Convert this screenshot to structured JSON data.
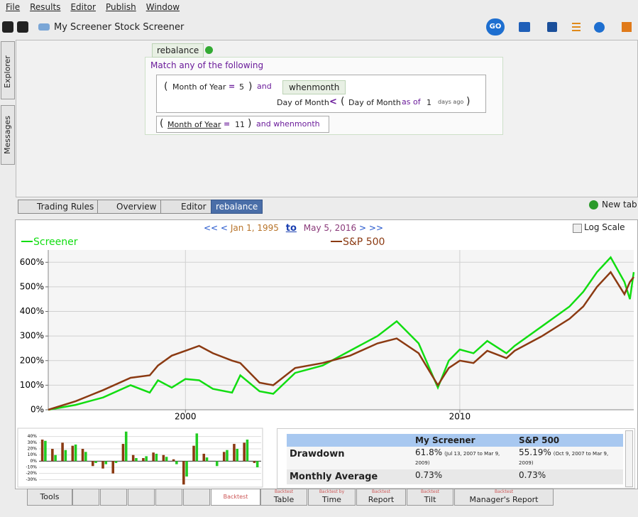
{
  "menu": [
    "File",
    "Results",
    "Editor",
    "Publish",
    "Window"
  ],
  "toolbar": {
    "title": "My Screener Stock Screener",
    "go": "GO"
  },
  "side_tabs": [
    "Explorer",
    "Messages"
  ],
  "rules": {
    "tab": "rebalance",
    "match": "Match any of the following",
    "row1": [
      "(",
      "Month of Year",
      "=",
      "5",
      ")",
      "and"
    ],
    "sub_tab": "whenmonth",
    "row1b": [
      "Day of Month",
      "<",
      "(",
      "Day of Month",
      "as of",
      "1",
      "days ago",
      ")"
    ],
    "row2": [
      "(",
      "Month of Year",
      "=",
      "11",
      ")",
      "and whenmonth"
    ]
  },
  "tabs": [
    "Trading Rules",
    "Overview",
    "Editor",
    "rebalance"
  ],
  "new_tab": "New tab",
  "range": {
    "back": "<< <",
    "start": "Jan 1, 1995",
    "to": "to",
    "end": "May 5, 2016",
    "forward": "> >>"
  },
  "log_scale": "Log Scale",
  "chart_data": [
    {
      "type": "line",
      "x": [
        1995,
        1996,
        1997,
        1998,
        1998.7,
        1999,
        1999.5,
        2000,
        2000.5,
        2001,
        2001.7,
        2002,
        2002.7,
        2003.2,
        2004,
        2005,
        2006,
        2007,
        2007.7,
        2008.5,
        2009.2,
        2009.6,
        2010,
        2010.5,
        2011,
        2011.7,
        2012,
        2013,
        2014,
        2014.5,
        2015,
        2015.5,
        2016,
        2016.2,
        2016.34
      ],
      "series": [
        {
          "name": "Screener",
          "color": "#11dd11",
          "values": [
            0,
            20,
            50,
            100,
            70,
            120,
            90,
            125,
            120,
            85,
            70,
            140,
            75,
            65,
            150,
            180,
            240,
            300,
            360,
            270,
            90,
            200,
            245,
            230,
            280,
            230,
            260,
            340,
            420,
            480,
            560,
            620,
            520,
            450,
            560
          ]
        },
        {
          "name": "S&P 500",
          "color": "#8b3a12",
          "values": [
            0,
            35,
            80,
            130,
            140,
            180,
            220,
            240,
            260,
            230,
            200,
            190,
            110,
            100,
            170,
            190,
            220,
            270,
            290,
            230,
            100,
            170,
            200,
            190,
            240,
            210,
            240,
            300,
            370,
            420,
            500,
            560,
            470,
            520,
            540
          ]
        }
      ],
      "xlim": [
        1995,
        2016.34
      ],
      "xticks": [
        2000,
        2010
      ],
      "ylim": [
        0,
        650
      ],
      "yticks": [
        {
          "value": 0,
          "label": "0%"
        },
        {
          "value": 100,
          "label": "100%"
        },
        {
          "value": 200,
          "label": "200%"
        },
        {
          "value": 300,
          "label": "300%"
        },
        {
          "value": 400,
          "label": "400%"
        },
        {
          "value": 500,
          "label": "500%"
        },
        {
          "value": 600,
          "label": "600%"
        }
      ],
      "grid": true
    },
    {
      "type": "bar",
      "categories": [
        null,
        null,
        null,
        null,
        null,
        null,
        null,
        null,
        null,
        null,
        null,
        null,
        null,
        null,
        null,
        null,
        null,
        null,
        null,
        null,
        null,
        null
      ],
      "series": [
        {
          "name": "S&P 500",
          "color": "#8b3a12",
          "values": [
            35,
            20,
            30,
            25,
            20,
            -8,
            -12,
            -20,
            28,
            10,
            5,
            14,
            10,
            3,
            -38,
            25,
            12,
            0,
            15,
            28,
            30,
            -3
          ]
        },
        {
          "name": "My Screener",
          "color": "#22cc22",
          "values": [
            33,
            10,
            18,
            27,
            15,
            -3,
            -5,
            -3,
            48,
            5,
            8,
            12,
            7,
            -5,
            -25,
            45,
            6,
            -8,
            18,
            20,
            35,
            -10
          ]
        }
      ],
      "ylim": [
        -40,
        50
      ],
      "yticks": [
        {
          "value": 40,
          "label": "40%"
        },
        {
          "value": 30,
          "label": "30%"
        },
        {
          "value": 20,
          "label": "20%"
        },
        {
          "value": 10,
          "label": "10%"
        },
        {
          "value": 0,
          "label": "0%"
        },
        {
          "value": -10,
          "label": "-10%"
        },
        {
          "value": -20,
          "label": "-20%"
        },
        {
          "value": -30,
          "label": "-30%"
        }
      ],
      "grid": true
    }
  ],
  "stats": {
    "headers": [
      "My Screener",
      "S&P 500"
    ],
    "rows": [
      {
        "label": "Drawdown",
        "cells": [
          {
            "value": "61.8%",
            "note": "(Jul 13, 2007 to Mar 9, 2009)"
          },
          {
            "value": "55.19%",
            "note": "(Oct 9, 2007 to Mar 9, 2009)"
          }
        ]
      },
      {
        "label": "Monthly Average",
        "cells": [
          {
            "value": "0.73%"
          },
          {
            "value": "0.73%"
          }
        ]
      }
    ]
  },
  "bottom_tabs": {
    "tools": "Tools",
    "backtest": "Backtest",
    "more": [
      {
        "small": "Backtest",
        "label": "Table"
      },
      {
        "small": "Backtest by",
        "label": "Time"
      },
      {
        "small": "Backtest",
        "label": "Report"
      },
      {
        "small": "Backtest",
        "label": "Tilt"
      },
      {
        "small": "Backtest",
        "label": "Manager's Report"
      }
    ]
  }
}
